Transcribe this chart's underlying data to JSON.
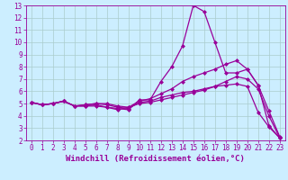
{
  "bg_color": "#cceeff",
  "line_color": "#990099",
  "grid_color": "#aacccc",
  "xlabel": "Windchill (Refroidissement éolien,°C)",
  "xlim": [
    -0.5,
    23.5
  ],
  "ylim": [
    2,
    13
  ],
  "xticks": [
    0,
    1,
    2,
    3,
    4,
    5,
    6,
    7,
    8,
    9,
    10,
    11,
    12,
    13,
    14,
    15,
    16,
    17,
    18,
    19,
    20,
    21,
    22,
    23
  ],
  "yticks": [
    2,
    3,
    4,
    5,
    6,
    7,
    8,
    9,
    10,
    11,
    12,
    13
  ],
  "lines": [
    [
      5.1,
      4.9,
      5.0,
      5.2,
      4.8,
      4.8,
      4.9,
      4.7,
      4.6,
      4.5,
      5.3,
      5.3,
      6.8,
      8.0,
      9.7,
      13.0,
      12.5,
      10.0,
      7.5,
      7.5,
      7.8,
      6.5,
      3.2,
      2.2
    ],
    [
      5.1,
      4.9,
      5.0,
      5.2,
      4.8,
      4.9,
      5.0,
      5.0,
      4.8,
      4.7,
      5.2,
      5.4,
      5.8,
      6.2,
      6.8,
      7.2,
      7.5,
      7.8,
      8.2,
      8.5,
      7.8,
      6.5,
      4.4,
      2.3
    ],
    [
      5.1,
      4.9,
      5.0,
      5.2,
      4.8,
      4.9,
      5.0,
      4.9,
      4.7,
      4.6,
      5.1,
      5.2,
      5.5,
      5.7,
      5.9,
      6.0,
      6.2,
      6.4,
      6.5,
      6.6,
      6.4,
      4.3,
      3.1,
      2.2
    ],
    [
      5.1,
      4.9,
      5.0,
      5.2,
      4.8,
      4.8,
      4.8,
      4.7,
      4.5,
      4.7,
      5.0,
      5.1,
      5.3,
      5.5,
      5.7,
      5.9,
      6.1,
      6.4,
      6.8,
      7.2,
      7.0,
      6.2,
      4.0,
      2.2
    ]
  ],
  "marker": "D",
  "marker_size": 2,
  "linewidth": 0.9,
  "tick_fontsize": 5.5,
  "label_fontsize": 6.5
}
